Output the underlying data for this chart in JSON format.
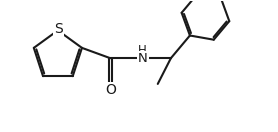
{
  "bg_color": "#ffffff",
  "line_color": "#1a1a1a",
  "line_width": 1.5,
  "font_size_S": 9,
  "font_size_O": 9,
  "font_size_NH": 8.5,
  "figsize": [
    2.78,
    1.32
  ],
  "dpi": 100,
  "xlim": [
    0,
    10
  ],
  "ylim": [
    0,
    4.75
  ]
}
